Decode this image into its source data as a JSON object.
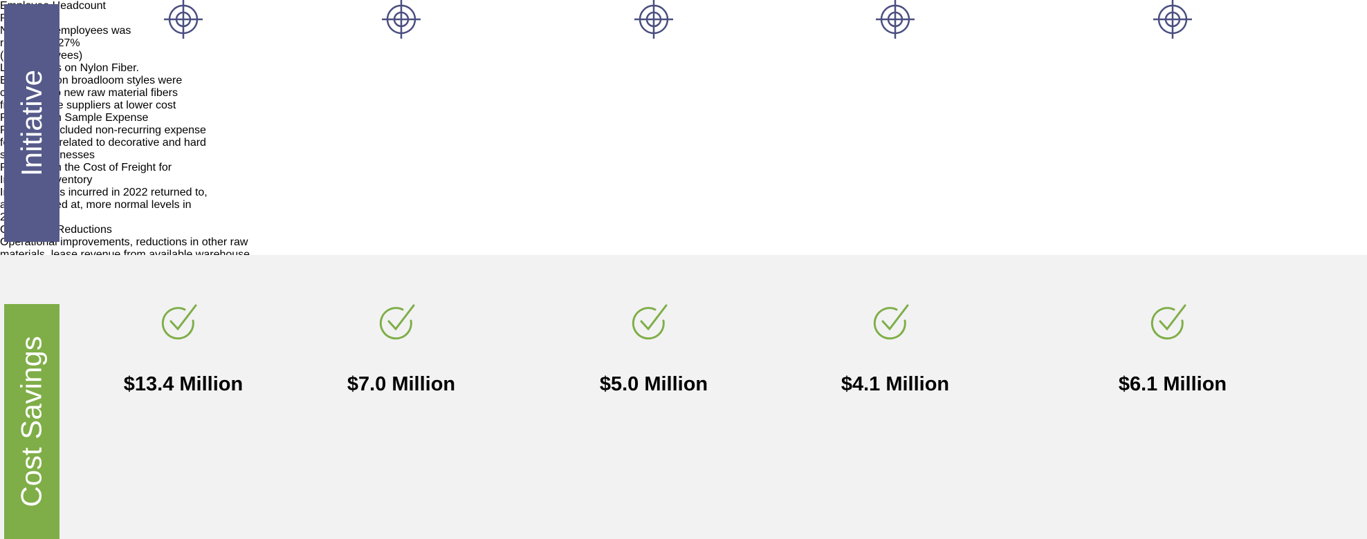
{
  "row_labels": [
    "Initiative",
    "Cost Savings"
  ],
  "columns": [
    {
      "title": "Employee Headcount Reduction",
      "description": "Number of employees was reduced by 27%",
      "note": "(354 employees)",
      "savings": "$13.4 Million"
    },
    {
      "title": "Lower Costs on Nylon Fiber.",
      "description": "Existing nylon broadloom styles were converted to new raw material fibers from multiple suppliers at lower cost",
      "savings": "$7.0 Million"
    },
    {
      "title": "Reduction in Sample Expense",
      "description": "Prior year included non-recurring expense for displays related to decorative and hard surface businesses",
      "savings": "$5.0 Million"
    },
    {
      "title": "Reduction in the Cost of Freight for Imported Inventory",
      "description": "Inflated costs incurred in 2022 returned to, and remained at, more normal levels in 2023",
      "savings": "$4.1 Million"
    },
    {
      "title": "Other Cost Reductions",
      "description": "Operational improvements, reductions in other raw materials, lease revenue from available warehouse space, increased freight surcharges and favorable adjustment to customer discount terms",
      "savings": "$6.1 Million"
    }
  ]
}
